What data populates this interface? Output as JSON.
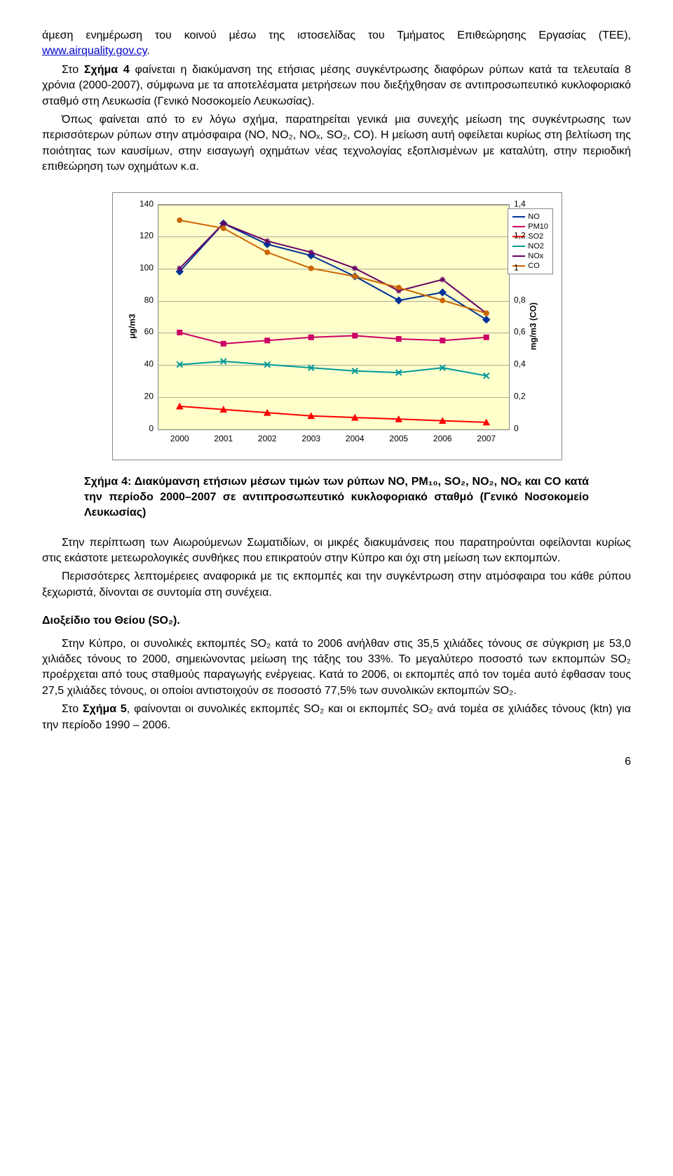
{
  "para1": {
    "t1": "άμεση ενημέρωση του κοινού μέσω της ιστοσελίδας του Τμήματος Επιθεώρησης Εργασίας (ΤΕΕ), ",
    "link": "www.airquality.gov.cy",
    "t2": "."
  },
  "para2": {
    "lead": "Στο ",
    "bold": "Σχήμα 4",
    "rest": " φαίνεται η διακύμανση της ετήσιας μέσης συγκέντρωσης διαφόρων ρύπων κατά τα τελευταία 8 χρόνια (2000-2007), σύμφωνα με τα αποτελέσματα μετρήσεων που διεξήχθησαν σε αντιπροσωπευτικό κυκλοφοριακό σταθμό στη Λευκωσία (Γενικό Νοσοκομείο Λευκωσίας)."
  },
  "para3": "Όπως φαίνεται από το εν λόγω σχήμα, παρατηρείται γενικά μια συνεχής μείωση της συγκέντρωσης των περισσότερων ρύπων στην ατμόσφαιρα (NO, NO₂, NOₓ, SO₂, CO). Η μείωση αυτή οφείλεται κυρίως στη βελτίωση της ποιότητας των καυσίμων, στην εισαγωγή οχημάτων νέας τεχνολογίας εξοπλισμένων με καταλύτη, στην περιοδική επιθεώρηση των οχημάτων κ.α.",
  "caption": "Σχήμα 4: Διακύμανση ετήσιων μέσων τιμών των ρύπων NO, PM₁₀, SO₂, NO₂, NOₓ και CO κατά την περίοδο 2000–2007 σε αντιπροσωπευτικό κυκλοφοριακό σταθμό (Γενικό Νοσοκομείο Λευκωσίας)",
  "para4": "Στην περίπτωση των Αιωρούμενων Σωματιδίων, οι μικρές διακυμάνσεις που παρατηρούνται οφείλονται κυρίως στις εκάστοτε μετεωρολογικές συνθήκες που επικρατούν στην Κύπρο και όχι στη μείωση των εκπομπών.",
  "para5": "Περισσότερες λεπτομέρειες αναφορικά με τις εκπομπές και την συγκέντρωση στην ατμόσφαιρα του κάθε ρύπου ξεχωριστά, δίνονται σε συντομία στη συνέχεια.",
  "heading_so2": "Διοξείδιο του Θείου (SO₂).",
  "para6": "Στην Κύπρο, οι συνολικές εκπομπές SO₂ κατά το 2006 ανήλθαν στις 35,5 χιλιάδες τόνους σε σύγκριση με 53,0 χιλιάδες τόνους το 2000, σημειώνοντας μείωση της τάξης του 33%. Το μεγαλύτερο ποσοστό των εκπομπών SO₂ προέρχεται από τους σταθμούς παραγωγής ενέργειας. Κατά το 2006, οι εκπομπές από τον τομέα αυτό έφθασαν τους 27,5 χιλιάδες τόνους, οι οποίοι αντιστοιχούν σε ποσοστό 77,5% των συνολικών εκπομπών SO₂.",
  "para7": {
    "lead": "Στο ",
    "bold": "Σχήμα 5",
    "rest": ", φαίνονται οι συνολικές εκπομπές SO₂ και οι εκπομπές SO₂ ανά τομέα σε χιλιάδες τόνους (ktn) για την περίοδο 1990 – 2006."
  },
  "page_number": "6",
  "chart": {
    "type": "line",
    "plot_bg": "#ffffcc",
    "grid_color": "#666666",
    "border_color": "#888888",
    "y_left": {
      "min": 0,
      "max": 140,
      "step": 20,
      "title": "μg/m3"
    },
    "y_right": {
      "min": 0,
      "max": 1.4,
      "step": 0.2,
      "title": "mg/m3 (CO)"
    },
    "x_categories": [
      "2000",
      "2001",
      "2002",
      "2003",
      "2004",
      "2005",
      "2006",
      "2007"
    ],
    "series": [
      {
        "name": "NO",
        "color": "#003399",
        "marker": "diamond",
        "axis": "left",
        "data": [
          98,
          128,
          115,
          108,
          95,
          80,
          85,
          68
        ]
      },
      {
        "name": "PM10",
        "color": "#cc0066",
        "marker": "square",
        "axis": "left",
        "data": [
          60,
          53,
          55,
          57,
          58,
          56,
          55,
          57
        ]
      },
      {
        "name": "SO2",
        "color": "#ff0000",
        "marker": "triangle",
        "axis": "left",
        "data": [
          14,
          12,
          10,
          8,
          7,
          6,
          5,
          4
        ]
      },
      {
        "name": "NO2",
        "color": "#009999",
        "marker": "x",
        "axis": "left",
        "data": [
          40,
          42,
          40,
          38,
          36,
          35,
          38,
          33
        ]
      },
      {
        "name": "NOx",
        "color": "#660066",
        "marker": "asterisk",
        "axis": "left",
        "data": [
          100,
          128,
          117,
          110,
          100,
          86,
          93,
          72
        ]
      },
      {
        "name": "CO",
        "color": "#cc6600",
        "marker": "circle",
        "axis": "right",
        "data": [
          1.3,
          1.25,
          1.1,
          1.0,
          0.95,
          0.88,
          0.8,
          0.72
        ]
      }
    ],
    "legend_order": [
      "NO",
      "PM10",
      "SO2",
      "NO2",
      "NOx",
      "CO"
    ],
    "line_width": 2,
    "marker_size": 8,
    "font_size_ticks": 12
  }
}
